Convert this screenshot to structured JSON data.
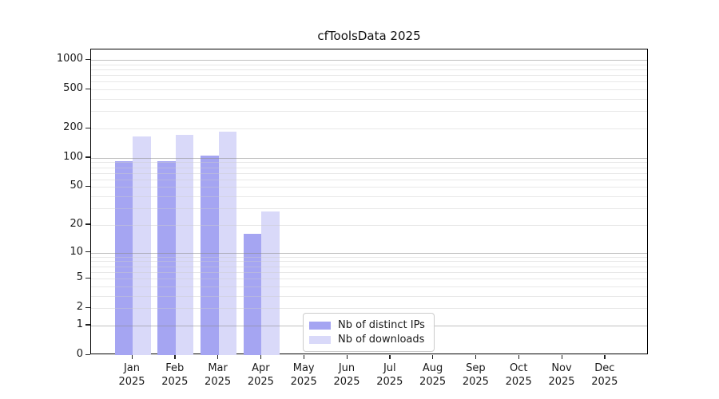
{
  "title": "cfToolsData 2025",
  "chart_data": {
    "type": "bar",
    "categories": [
      "Jan",
      "Feb",
      "Mar",
      "Apr",
      "May",
      "Jun",
      "Jul",
      "Aug",
      "Sep",
      "Oct",
      "Nov",
      "Dec"
    ],
    "year": "2025",
    "series": [
      {
        "name": "Nb of distinct IPs",
        "color": "#a5a5f2",
        "values": [
          92,
          93,
          105,
          16,
          0,
          0,
          0,
          0,
          0,
          0,
          0,
          0
        ]
      },
      {
        "name": "Nb of downloads",
        "color": "#d9d9f9",
        "values": [
          165,
          172,
          184,
          28,
          0,
          0,
          0,
          0,
          0,
          0,
          0,
          0
        ]
      }
    ],
    "yscale": "log1p",
    "yticks": [
      0,
      1,
      2,
      5,
      10,
      20,
      50,
      100,
      200,
      500,
      1000
    ],
    "ylim": [
      0,
      1275
    ],
    "grid": true,
    "grid_major_at": [
      1,
      10,
      100,
      1000
    ],
    "legend_position": "lower-left-of-center"
  }
}
